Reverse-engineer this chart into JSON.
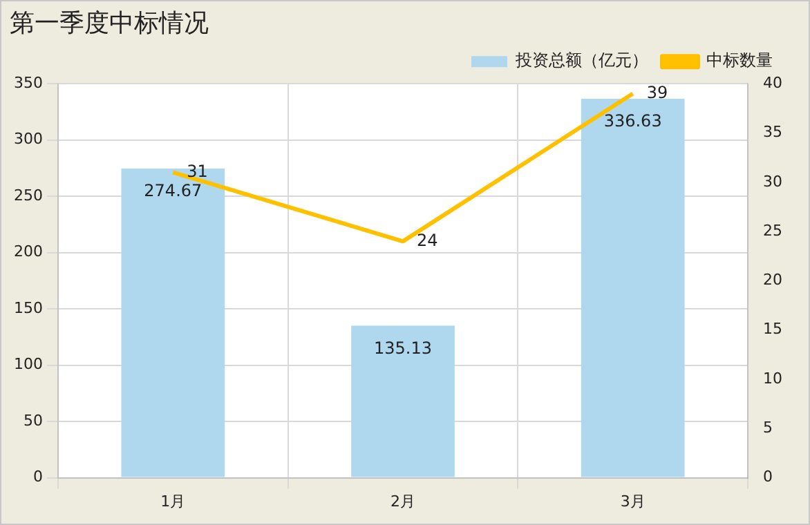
{
  "chart_data": {
    "type": "bar",
    "title": "第一季度中标情况",
    "categories": [
      "1月",
      "2月",
      "3月"
    ],
    "series": [
      {
        "name": "投资总额（亿元）",
        "color": "#afd8ee",
        "values": [
          274.67,
          135.13,
          336.63
        ]
      },
      {
        "name": "中标数量",
        "type": "line",
        "color": "#ffc000",
        "axis": "y2",
        "values": [
          31,
          24,
          39
        ]
      }
    ],
    "ylim": [
      0,
      350
    ],
    "yticks": [
      0,
      50,
      100,
      150,
      200,
      250,
      300,
      350
    ],
    "y2lim": [
      0,
      40
    ],
    "y2ticks": [
      0,
      5,
      10,
      15,
      20,
      25,
      30,
      35,
      40
    ],
    "grid": true,
    "legend": "top right",
    "data_labels": true,
    "marker": "none",
    "line_style": "solid"
  }
}
